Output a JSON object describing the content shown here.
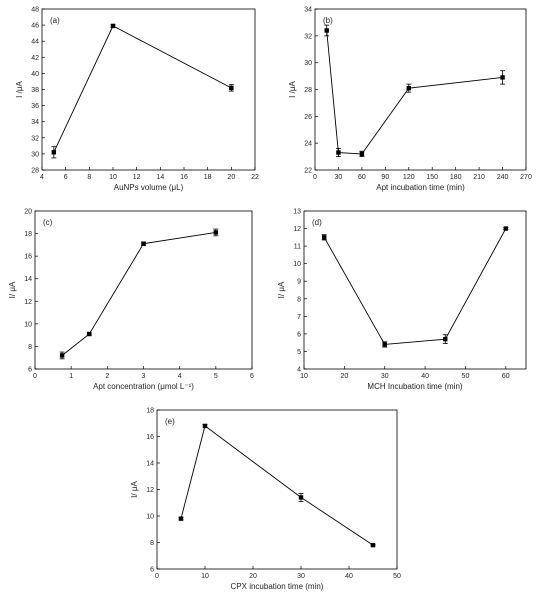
{
  "chart_data": [
    {
      "panel": "(a)",
      "type": "line",
      "xlabel": "AuNPs volume (μL)",
      "ylabel": "I /μA",
      "xlim": [
        4,
        22
      ],
      "ylim": [
        28,
        48
      ],
      "xticks": [
        4,
        6,
        8,
        10,
        12,
        14,
        16,
        18,
        20,
        22
      ],
      "yticks": [
        28,
        30,
        32,
        34,
        36,
        38,
        40,
        42,
        44,
        46,
        48
      ],
      "x": [
        5,
        10,
        20
      ],
      "y": [
        30.2,
        45.9,
        38.2
      ],
      "err": [
        0.7,
        0.15,
        0.4
      ]
    },
    {
      "panel": "(b)",
      "type": "line",
      "xlabel": "Apt incubation time (min)",
      "ylabel": "I /μA",
      "xlim": [
        0,
        270
      ],
      "ylim": [
        22,
        34
      ],
      "xticks": [
        0,
        30,
        60,
        90,
        120,
        150,
        180,
        210,
        240,
        270
      ],
      "yticks": [
        22,
        24,
        26,
        28,
        30,
        32,
        34
      ],
      "x": [
        15,
        30,
        60,
        120,
        240
      ],
      "y": [
        32.4,
        23.3,
        23.2,
        28.1,
        28.9
      ],
      "err": [
        0.4,
        0.3,
        0.2,
        0.3,
        0.5
      ]
    },
    {
      "panel": "(c)",
      "type": "line",
      "xlabel": "Apt concentration (μmol L⁻¹)",
      "ylabel": "I/ μA",
      "xlim": [
        0,
        6
      ],
      "ylim": [
        6,
        20
      ],
      "xticks": [
        0,
        1,
        2,
        3,
        4,
        5,
        6
      ],
      "yticks": [
        6,
        8,
        10,
        12,
        14,
        16,
        18,
        20
      ],
      "x": [
        0.75,
        1.5,
        3,
        5
      ],
      "y": [
        7.2,
        9.1,
        17.1,
        18.1
      ],
      "err": [
        0.3,
        0.1,
        0.15,
        0.3
      ]
    },
    {
      "panel": "(d)",
      "type": "line",
      "xlabel": "MCH Incubation time (min)",
      "ylabel": "I/ μA",
      "xlim": [
        10,
        65
      ],
      "ylim": [
        4,
        13
      ],
      "xticks": [
        10,
        20,
        30,
        40,
        50,
        60
      ],
      "yticks": [
        4,
        5,
        6,
        7,
        8,
        9,
        10,
        11,
        12,
        13
      ],
      "x": [
        15,
        30,
        45,
        60
      ],
      "y": [
        11.5,
        5.4,
        5.7,
        12.0
      ],
      "err": [
        0.15,
        0.15,
        0.25,
        0.05
      ]
    },
    {
      "panel": "(e)",
      "type": "line",
      "xlabel": "CPX incubation time (min)",
      "ylabel": "I/ μA",
      "xlim": [
        0,
        50
      ],
      "ylim": [
        6,
        18
      ],
      "xticks": [
        0,
        10,
        20,
        30,
        40,
        50
      ],
      "yticks": [
        6,
        8,
        10,
        12,
        14,
        16,
        18
      ],
      "x": [
        5,
        10,
        30,
        45
      ],
      "y": [
        9.8,
        16.8,
        11.4,
        7.8
      ],
      "err": [
        0.1,
        0.1,
        0.3,
        0.05
      ]
    }
  ]
}
